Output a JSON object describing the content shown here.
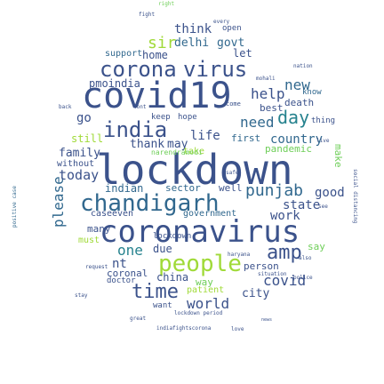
{
  "cloud": {
    "words": [
      {
        "text": "lockdown",
        "color": "#3b528b"
      },
      {
        "text": "covid19",
        "color": "#3b528b"
      },
      {
        "text": "coronavirus",
        "color": "#3b528b"
      },
      {
        "text": "chandigarh",
        "color": "#31688e"
      },
      {
        "text": "people",
        "color": "#a0da39"
      },
      {
        "text": "corona",
        "color": "#3b528b"
      },
      {
        "text": "virus",
        "color": "#3b528b"
      },
      {
        "text": "india",
        "color": "#3b528b"
      },
      {
        "text": "day",
        "color": "#26828e"
      },
      {
        "text": "punjab",
        "color": "#31688e"
      },
      {
        "text": "time",
        "color": "#3b528b"
      },
      {
        "text": "amp",
        "color": "#3b528b"
      },
      {
        "text": "need",
        "color": "#31688e"
      },
      {
        "text": "help",
        "color": "#3b528b"
      },
      {
        "text": "new",
        "color": "#31688e"
      },
      {
        "text": "life",
        "color": "#3b528b"
      },
      {
        "text": "one",
        "color": "#26828e"
      },
      {
        "text": "covid",
        "color": "#3b528b"
      },
      {
        "text": "world",
        "color": "#3b528b"
      },
      {
        "text": "country",
        "color": "#31688e"
      },
      {
        "text": "please",
        "color": "#31688e"
      },
      {
        "text": "think",
        "color": "#3b528b"
      },
      {
        "text": "sir",
        "color": "#a0da39"
      },
      {
        "text": "delhi",
        "color": "#31688e"
      },
      {
        "text": "govt",
        "color": "#31688e"
      },
      {
        "text": "today",
        "color": "#3b528b"
      },
      {
        "text": "family",
        "color": "#3b528b"
      },
      {
        "text": "go",
        "color": "#3b528b"
      },
      {
        "text": "good",
        "color": "#3b528b"
      },
      {
        "text": "work",
        "color": "#3b528b"
      },
      {
        "text": "state",
        "color": "#3b528b"
      },
      {
        "text": "city",
        "color": "#3b528b"
      },
      {
        "text": "thank",
        "color": "#3b528b"
      },
      {
        "text": "may",
        "color": "#3b528b"
      },
      {
        "text": "indian",
        "color": "#31688e"
      },
      {
        "text": "home",
        "color": "#3b528b"
      },
      {
        "text": "support",
        "color": "#31688e"
      },
      {
        "text": "let",
        "color": "#3b528b"
      },
      {
        "text": "pmoindia",
        "color": "#3b528b"
      },
      {
        "text": "first",
        "color": "#31688e"
      },
      {
        "text": "pandemic",
        "color": "#6ece58"
      },
      {
        "text": "death",
        "color": "#3b528b"
      },
      {
        "text": "best",
        "color": "#3b528b"
      },
      {
        "text": "know",
        "color": "#31688e"
      },
      {
        "text": "thing",
        "color": "#3b528b"
      },
      {
        "text": "still",
        "color": "#a0da39"
      },
      {
        "text": "without",
        "color": "#3b528b"
      },
      {
        "text": "sector",
        "color": "#31688e"
      },
      {
        "text": "well",
        "color": "#3b528b"
      },
      {
        "text": "case",
        "color": "#3b528b"
      },
      {
        "text": "even",
        "color": "#3b528b"
      },
      {
        "text": "government",
        "color": "#31688e"
      },
      {
        "text": "must",
        "color": "#a0da39"
      },
      {
        "text": "many",
        "color": "#3b528b"
      },
      {
        "text": "due",
        "color": "#3b528b"
      },
      {
        "text": "nt",
        "color": "#3b528b"
      },
      {
        "text": "coronal",
        "color": "#3b528b"
      },
      {
        "text": "china",
        "color": "#3b528b"
      },
      {
        "text": "way",
        "color": "#6ece58"
      },
      {
        "text": "patient",
        "color": "#a0da39"
      },
      {
        "text": "person",
        "color": "#3b528b"
      },
      {
        "text": "say",
        "color": "#6ece58"
      },
      {
        "text": "keep",
        "color": "#3b528b"
      },
      {
        "text": "hope",
        "color": "#3b528b"
      },
      {
        "text": "take",
        "color": "#a0da39"
      },
      {
        "text": "open",
        "color": "#3b528b"
      },
      {
        "text": "make",
        "color": "#6ece58"
      },
      {
        "text": "doctor",
        "color": "#3b528b"
      },
      {
        "text": "want",
        "color": "#3b528b"
      },
      {
        "text": "positive case",
        "color": "#31688e"
      },
      {
        "text": "indiafightscorona",
        "color": "#3b528b"
      },
      {
        "text": "lockdown period",
        "color": "#3b528b"
      },
      {
        "text": "right",
        "color": "#6ece58"
      },
      {
        "text": "news",
        "color": "#3b528b"
      },
      {
        "text": "narendramodi",
        "color": "#6ece58"
      },
      {
        "text": "haryana",
        "color": "#3b528b"
      },
      {
        "text": "every",
        "color": "#3b528b"
      },
      {
        "text": "come",
        "color": "#3b528b"
      },
      {
        "text": "request",
        "color": "#3b528b"
      },
      {
        "text": "police",
        "color": "#3b528b"
      },
      {
        "text": "mohali",
        "color": "#3b528b"
      },
      {
        "text": "nation",
        "color": "#3b528b"
      },
      {
        "text": "great",
        "color": "#3b528b"
      },
      {
        "text": "social distancing",
        "color": "#3b528b"
      },
      {
        "text": "situation",
        "color": "#3b528b"
      },
      {
        "text": "stay",
        "color": "#3b528b"
      },
      {
        "text": "see",
        "color": "#3b528b"
      },
      {
        "text": "back",
        "color": "#3b528b"
      },
      {
        "text": "live",
        "color": "#3b528b"
      },
      {
        "text": "dont",
        "color": "#3b528b"
      },
      {
        "text": "love",
        "color": "#3b528b"
      },
      {
        "text": "safe",
        "color": "#3b528b"
      },
      {
        "text": "also",
        "color": "#3b528b"
      },
      {
        "text": "fight",
        "color": "#3b528b"
      },
      {
        "text": "lockdown",
        "color": "#3b528b"
      }
    ]
  }
}
